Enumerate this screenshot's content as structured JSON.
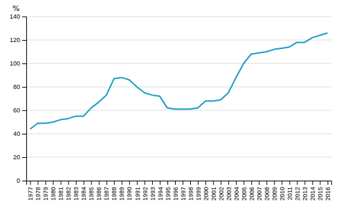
{
  "chart_data": {
    "type": "line",
    "ylabel": "%",
    "x": [
      1977,
      1978,
      1979,
      1980,
      1981,
      1982,
      1983,
      1984,
      1985,
      1986,
      1987,
      1988,
      1989,
      1990,
      1991,
      1992,
      1993,
      1994,
      1995,
      1996,
      1997,
      1998,
      1999,
      2000,
      2001,
      2002,
      2003,
      2004,
      2005,
      2006,
      2007,
      2008,
      2009,
      2010,
      2011,
      2012,
      2013,
      2014,
      2015,
      2016
    ],
    "values": [
      44,
      49,
      49,
      50,
      52,
      53,
      55,
      55,
      62,
      67,
      73,
      87,
      88,
      86,
      80,
      75,
      73,
      72,
      62,
      61,
      61,
      61,
      62,
      68,
      68,
      69,
      75,
      88,
      100,
      108,
      109,
      110,
      112,
      113,
      114,
      118,
      118,
      122,
      124,
      126
    ],
    "color": "#1a9bc7",
    "xlim": [
      1976.5,
      2016.5
    ],
    "xticks": [
      1977,
      1978,
      1979,
      1980,
      1981,
      1982,
      1983,
      1984,
      1985,
      1986,
      1987,
      1988,
      1989,
      1990,
      1991,
      1992,
      1993,
      1994,
      1995,
      1996,
      1997,
      1998,
      1999,
      2000,
      2001,
      2002,
      2003,
      2004,
      2005,
      2006,
      2007,
      2008,
      2009,
      2010,
      2011,
      2012,
      2013,
      2014,
      2015,
      2016
    ],
    "ylim": [
      0,
      140
    ],
    "yticks": [
      0,
      20,
      40,
      60,
      80,
      100,
      120,
      140
    ],
    "grid": true
  }
}
